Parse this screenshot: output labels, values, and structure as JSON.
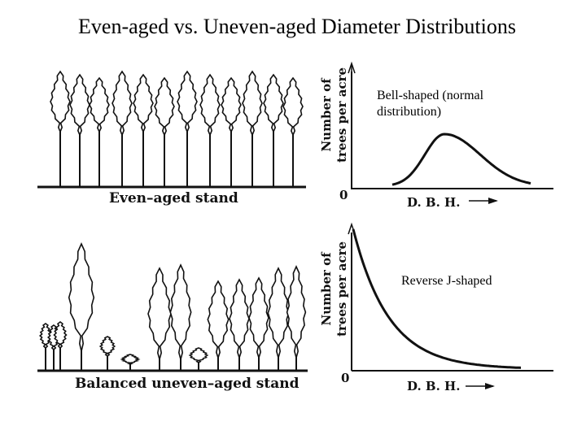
{
  "title": "Even-aged vs. Uneven-aged Diameter Distributions",
  "top_panel": {
    "stand_caption": "Even–aged stand",
    "y_label_line1": "Number of",
    "y_label_line2": "trees per acre",
    "origin": "0",
    "x_label": "D. B. H.",
    "curve_label": "Bell-shaped (normal distribution)"
  },
  "bottom_panel": {
    "stand_caption": "Balanced uneven–aged stand",
    "y_label_line1": "Number of",
    "y_label_line2": "trees per acre",
    "origin": "0",
    "x_label": "D. B. H.",
    "curve_label": "Reverse J-shaped"
  },
  "colors": {
    "ink": "#111111",
    "background": "#ffffff"
  }
}
